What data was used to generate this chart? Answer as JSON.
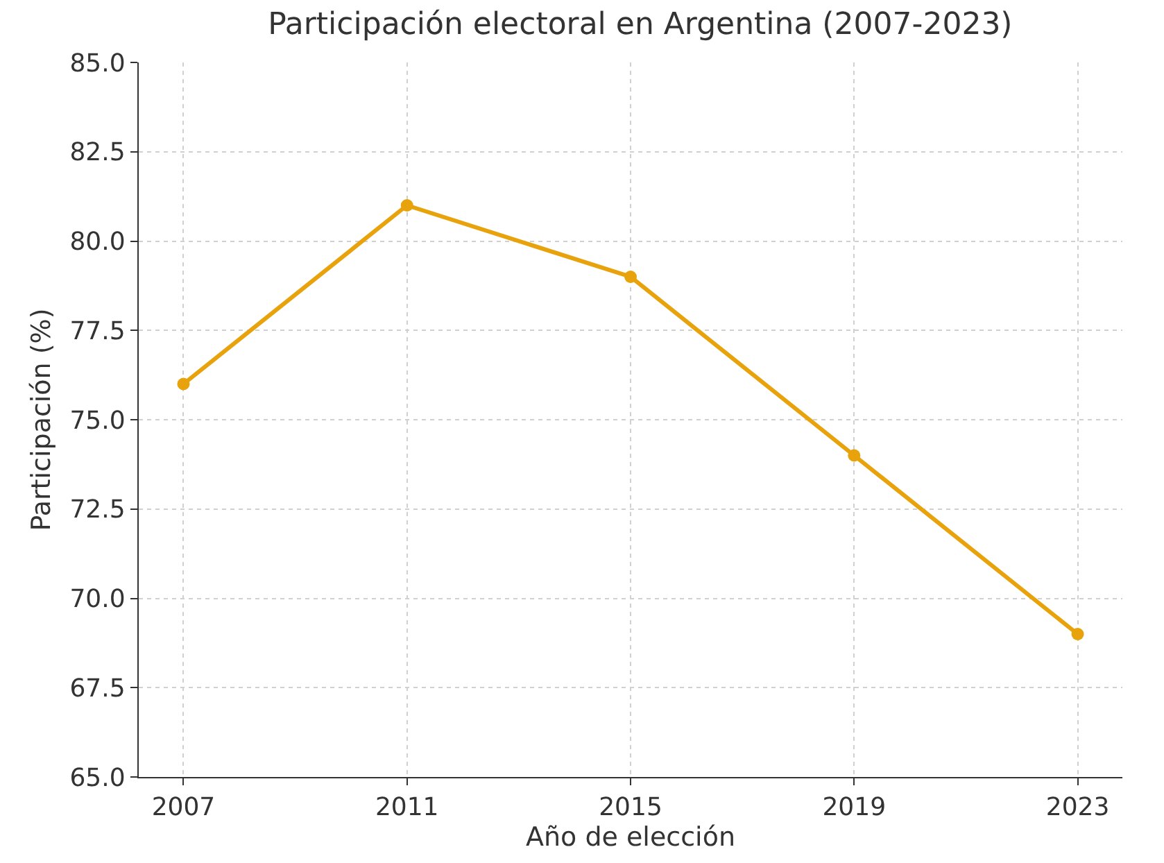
{
  "chart_data": {
    "type": "line",
    "title": "Participación electoral en Argentina (2007-2023)",
    "xlabel": "Año de elección",
    "ylabel": "Participación (%)",
    "x": [
      2007,
      2011,
      2015,
      2019,
      2023
    ],
    "series": [
      {
        "color": "#e8a20c",
        "values": [
          76,
          81,
          79,
          74,
          69
        ]
      }
    ],
    "xlim": [
      2006.2,
      2023.8
    ],
    "xticks": [
      2007,
      2011,
      2015,
      2019,
      2023
    ],
    "ylim": [
      65,
      85
    ],
    "yticks": [
      {
        "value": 65,
        "label": "65.0"
      },
      {
        "value": 67.5,
        "label": "67.5"
      },
      {
        "value": 70,
        "label": "70.0"
      },
      {
        "value": 72.5,
        "label": "72.5"
      },
      {
        "value": 75,
        "label": "75.0"
      },
      {
        "value": 77.5,
        "label": "77.5"
      },
      {
        "value": 80,
        "label": "80.0"
      },
      {
        "value": 82.5,
        "label": "82.5"
      },
      {
        "value": 85,
        "label": "85.0"
      }
    ],
    "grid": true,
    "marker": "circle",
    "line_style": "solid"
  }
}
